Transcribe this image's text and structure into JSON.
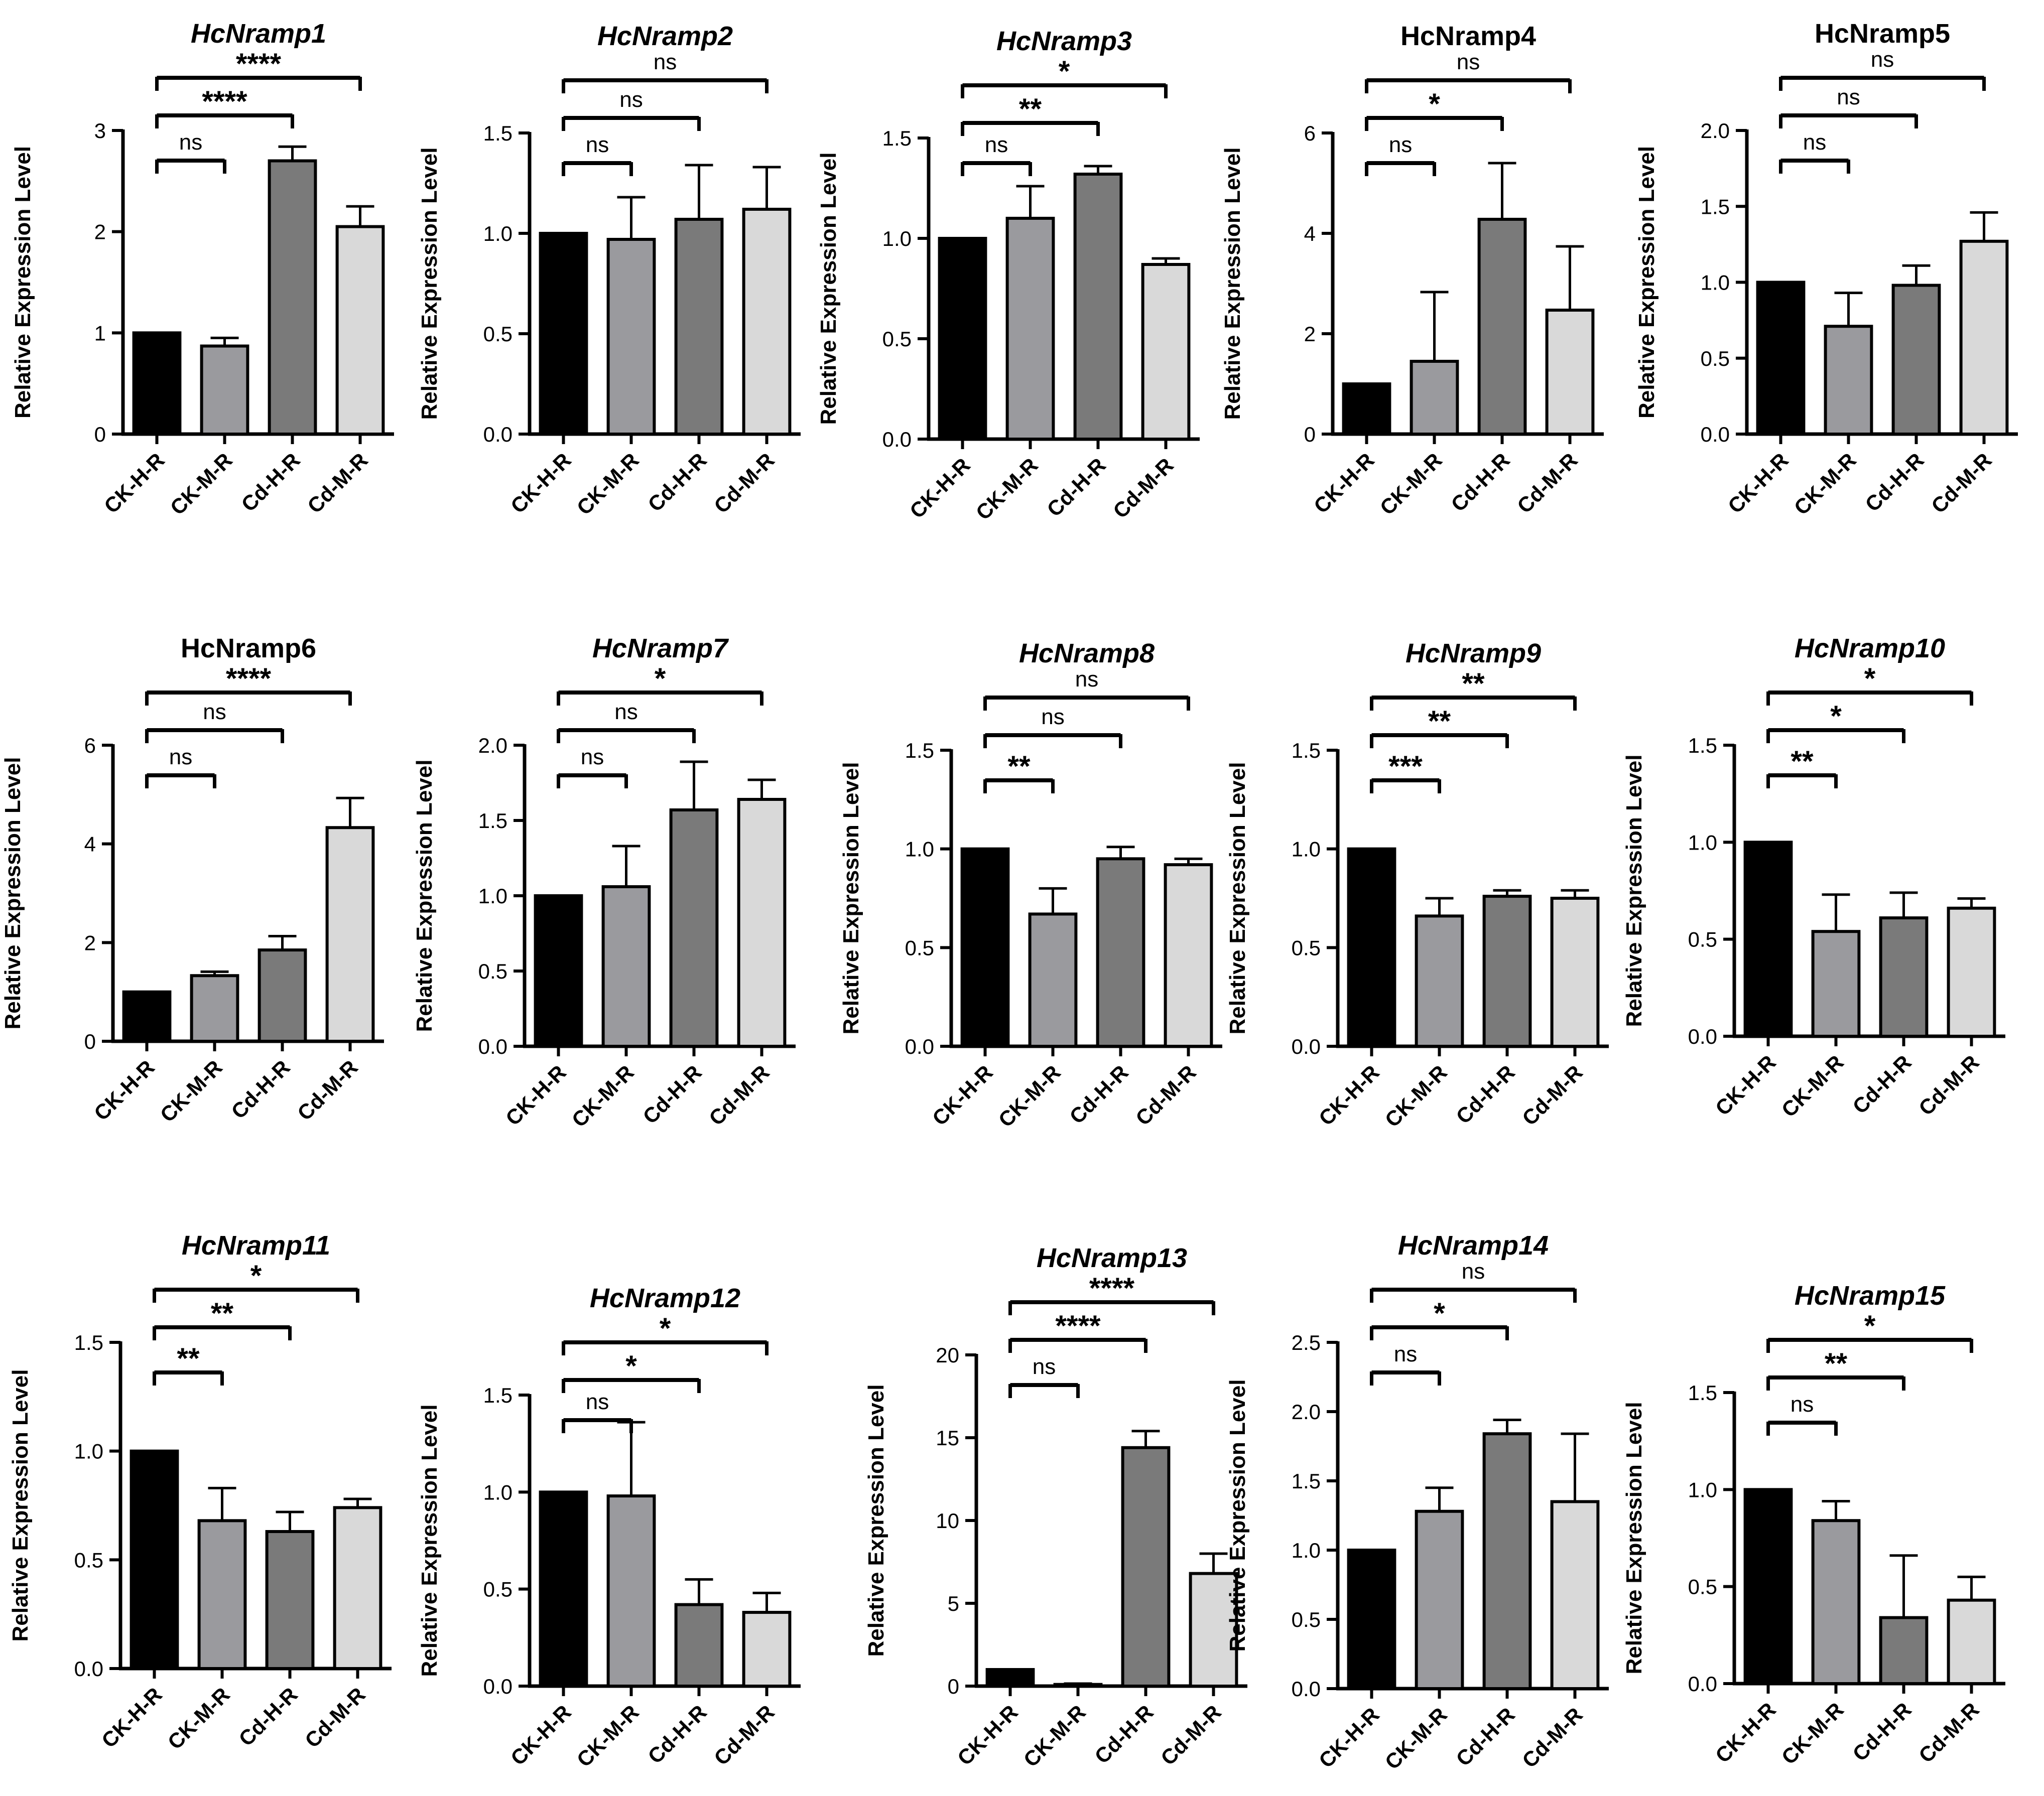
{
  "figure": {
    "ylabel": "Relative Expression Level",
    "categories": [
      "CK-H-R",
      "CK-M-R",
      "Cd-H-R",
      "Cd-M-R"
    ],
    "bar_colors": [
      "#000000",
      "#9a9a9e",
      "#7a7a7a",
      "#d9d9d9"
    ]
  },
  "chart_data": [
    {
      "type": "bar",
      "title": "HcNramp1",
      "italic": true,
      "categories": [
        "CK-H-R",
        "CK-M-R",
        "Cd-H-R",
        "Cd-M-R"
      ],
      "values": [
        1.0,
        0.87,
        2.7,
        2.05
      ],
      "errors": [
        0,
        0.08,
        0.14,
        0.2
      ],
      "ylim": [
        0,
        3
      ],
      "yticks": [
        "0",
        "1",
        "2",
        "3"
      ],
      "ylabel": "Relative Expression Level",
      "significance": [
        {
          "from": 0,
          "to": 1,
          "label": "ns"
        },
        {
          "from": 0,
          "to": 2,
          "label": "****"
        },
        {
          "from": 0,
          "to": 3,
          "label": "****"
        }
      ]
    },
    {
      "type": "bar",
      "title": "HcNramp2",
      "italic": true,
      "categories": [
        "CK-H-R",
        "CK-M-R",
        "Cd-H-R",
        "Cd-M-R"
      ],
      "values": [
        1.0,
        0.97,
        1.07,
        1.12
      ],
      "errors": [
        0,
        0.21,
        0.27,
        0.21
      ],
      "ylim": [
        0,
        1.5
      ],
      "yticks": [
        "0.0",
        "0.5",
        "1.0",
        "1.5"
      ],
      "ylabel": "Relative Expression Level",
      "significance": [
        {
          "from": 0,
          "to": 1,
          "label": "ns"
        },
        {
          "from": 0,
          "to": 2,
          "label": "ns"
        },
        {
          "from": 0,
          "to": 3,
          "label": "ns"
        }
      ]
    },
    {
      "type": "bar",
      "title": "HcNramp3",
      "italic": true,
      "categories": [
        "CK-H-R",
        "CK-M-R",
        "Cd-H-R",
        "Cd-M-R"
      ],
      "values": [
        1.0,
        1.1,
        1.32,
        0.87
      ],
      "errors": [
        0,
        0.16,
        0.04,
        0.03
      ],
      "ylim": [
        0,
        1.5
      ],
      "yticks": [
        "0.0",
        "0.5",
        "1.0",
        "1.5"
      ],
      "ylabel": "Relative Expression Level",
      "significance": [
        {
          "from": 0,
          "to": 1,
          "label": "ns"
        },
        {
          "from": 0,
          "to": 2,
          "label": "**"
        },
        {
          "from": 0,
          "to": 3,
          "label": "*"
        }
      ]
    },
    {
      "type": "bar",
      "title": "HcNramp4",
      "italic": false,
      "categories": [
        "CK-H-R",
        "CK-M-R",
        "Cd-H-R",
        "Cd-M-R"
      ],
      "values": [
        1.0,
        1.45,
        4.28,
        2.47
      ],
      "errors": [
        0,
        1.38,
        1.12,
        1.27
      ],
      "ylim": [
        0,
        6
      ],
      "yticks": [
        "0",
        "2",
        "4",
        "6"
      ],
      "ylabel": "Relative Expression Level",
      "significance": [
        {
          "from": 0,
          "to": 1,
          "label": "ns"
        },
        {
          "from": 0,
          "to": 2,
          "label": "*"
        },
        {
          "from": 0,
          "to": 3,
          "label": "ns"
        }
      ]
    },
    {
      "type": "bar",
      "title": "HcNramp5",
      "italic": false,
      "categories": [
        "CK-H-R",
        "CK-M-R",
        "Cd-H-R",
        "Cd-M-R"
      ],
      "values": [
        1.0,
        0.71,
        0.98,
        1.27
      ],
      "errors": [
        0,
        0.22,
        0.13,
        0.19
      ],
      "ylim": [
        0,
        2.0
      ],
      "yticks": [
        "0.0",
        "0.5",
        "1.0",
        "1.5",
        "2.0"
      ],
      "ylabel": "Relative Expression Level",
      "significance": [
        {
          "from": 0,
          "to": 1,
          "label": "ns"
        },
        {
          "from": 0,
          "to": 2,
          "label": "ns"
        },
        {
          "from": 0,
          "to": 3,
          "label": "ns"
        }
      ]
    },
    {
      "type": "bar",
      "title": "HcNramp6",
      "italic": false,
      "categories": [
        "CK-H-R",
        "CK-M-R",
        "Cd-H-R",
        "Cd-M-R"
      ],
      "values": [
        1.0,
        1.33,
        1.85,
        4.33
      ],
      "errors": [
        0,
        0.08,
        0.28,
        0.6
      ],
      "ylim": [
        0,
        6
      ],
      "yticks": [
        "0",
        "2",
        "4",
        "6"
      ],
      "ylabel": "Relative Expression Level",
      "significance": [
        {
          "from": 0,
          "to": 1,
          "label": "ns"
        },
        {
          "from": 0,
          "to": 2,
          "label": "ns"
        },
        {
          "from": 0,
          "to": 3,
          "label": "****"
        }
      ]
    },
    {
      "type": "bar",
      "title": "HcNramp7",
      "italic": true,
      "categories": [
        "CK-H-R",
        "CK-M-R",
        "Cd-H-R",
        "Cd-M-R"
      ],
      "values": [
        1.0,
        1.06,
        1.57,
        1.64
      ],
      "errors": [
        0,
        0.27,
        0.32,
        0.13
      ],
      "ylim": [
        0,
        2.0
      ],
      "yticks": [
        "0.0",
        "0.5",
        "1.0",
        "1.5",
        "2.0"
      ],
      "ylabel": "Relative Expression Level",
      "significance": [
        {
          "from": 0,
          "to": 1,
          "label": "ns"
        },
        {
          "from": 0,
          "to": 2,
          "label": "ns"
        },
        {
          "from": 0,
          "to": 3,
          "label": "*"
        }
      ]
    },
    {
      "type": "bar",
      "title": "HcNramp8",
      "italic": true,
      "categories": [
        "CK-H-R",
        "CK-M-R",
        "Cd-H-R",
        "Cd-M-R"
      ],
      "values": [
        1.0,
        0.67,
        0.95,
        0.92
      ],
      "errors": [
        0,
        0.13,
        0.06,
        0.03
      ],
      "ylim": [
        0,
        1.5
      ],
      "yticks": [
        "0.0",
        "0.5",
        "1.0",
        "1.5"
      ],
      "ylabel": "Relative Expression Level",
      "significance": [
        {
          "from": 0,
          "to": 1,
          "label": "**"
        },
        {
          "from": 0,
          "to": 2,
          "label": "ns"
        },
        {
          "from": 0,
          "to": 3,
          "label": "ns"
        }
      ]
    },
    {
      "type": "bar",
      "title": "HcNramp9",
      "italic": true,
      "categories": [
        "CK-H-R",
        "CK-M-R",
        "Cd-H-R",
        "Cd-M-R"
      ],
      "values": [
        1.0,
        0.66,
        0.76,
        0.75
      ],
      "errors": [
        0,
        0.09,
        0.03,
        0.04
      ],
      "ylim": [
        0,
        1.5
      ],
      "yticks": [
        "0.0",
        "0.5",
        "1.0",
        "1.5"
      ],
      "ylabel": "Relative Expression Level",
      "significance": [
        {
          "from": 0,
          "to": 1,
          "label": "***"
        },
        {
          "from": 0,
          "to": 2,
          "label": "**"
        },
        {
          "from": 0,
          "to": 3,
          "label": "**"
        }
      ]
    },
    {
      "type": "bar",
      "title": "HcNramp10",
      "italic": true,
      "categories": [
        "CK-H-R",
        "CK-M-R",
        "Cd-H-R",
        "Cd-M-R"
      ],
      "values": [
        1.0,
        0.54,
        0.61,
        0.66
      ],
      "errors": [
        0,
        0.19,
        0.13,
        0.05
      ],
      "ylim": [
        0,
        1.5
      ],
      "yticks": [
        "0.0",
        "0.5",
        "1.0",
        "1.5"
      ],
      "ylabel": "Relative Expression Level",
      "significance": [
        {
          "from": 0,
          "to": 1,
          "label": "**"
        },
        {
          "from": 0,
          "to": 2,
          "label": "*"
        },
        {
          "from": 0,
          "to": 3,
          "label": "*"
        }
      ]
    },
    {
      "type": "bar",
      "title": "HcNramp11",
      "italic": true,
      "categories": [
        "CK-H-R",
        "CK-M-R",
        "Cd-H-R",
        "Cd-M-R"
      ],
      "values": [
        1.0,
        0.68,
        0.63,
        0.74
      ],
      "errors": [
        0,
        0.15,
        0.09,
        0.04
      ],
      "ylim": [
        0,
        1.5
      ],
      "yticks": [
        "0.0",
        "0.5",
        "1.0",
        "1.5"
      ],
      "ylabel": "Relative Expression Level",
      "significance": [
        {
          "from": 0,
          "to": 1,
          "label": "**"
        },
        {
          "from": 0,
          "to": 2,
          "label": "**"
        },
        {
          "from": 0,
          "to": 3,
          "label": "*"
        }
      ]
    },
    {
      "type": "bar",
      "title": "HcNramp12",
      "italic": true,
      "categories": [
        "CK-H-R",
        "CK-M-R",
        "Cd-H-R",
        "Cd-M-R"
      ],
      "values": [
        1.0,
        0.98,
        0.42,
        0.38
      ],
      "errors": [
        0,
        0.38,
        0.13,
        0.1
      ],
      "ylim": [
        0,
        1.5
      ],
      "yticks": [
        "0.0",
        "0.5",
        "1.0",
        "1.5"
      ],
      "ylabel": "Relative Expression Level",
      "significance": [
        {
          "from": 0,
          "to": 1,
          "label": "ns"
        },
        {
          "from": 0,
          "to": 2,
          "label": "*"
        },
        {
          "from": 0,
          "to": 3,
          "label": "*"
        }
      ]
    },
    {
      "type": "bar",
      "title": "HcNramp13",
      "italic": true,
      "categories": [
        "CK-H-R",
        "CK-M-R",
        "Cd-H-R",
        "Cd-M-R"
      ],
      "values": [
        1.0,
        0.1,
        14.4,
        6.8
      ],
      "errors": [
        0,
        0.05,
        1.0,
        1.2
      ],
      "ylim": [
        0,
        20
      ],
      "yticks": [
        "0",
        "5",
        "10",
        "15",
        "20"
      ],
      "ylabel": "Relative Expression Level",
      "significance": [
        {
          "from": 0,
          "to": 1,
          "label": "ns"
        },
        {
          "from": 0,
          "to": 2,
          "label": "****"
        },
        {
          "from": 0,
          "to": 3,
          "label": "****"
        }
      ]
    },
    {
      "type": "bar",
      "title": "HcNramp14",
      "italic": true,
      "categories": [
        "CK-H-R",
        "CK-M-R",
        "Cd-H-R",
        "Cd-M-R"
      ],
      "values": [
        1.0,
        1.28,
        1.84,
        1.35
      ],
      "errors": [
        0,
        0.17,
        0.1,
        0.49
      ],
      "ylim": [
        0,
        2.5
      ],
      "yticks": [
        "0.0",
        "0.5",
        "1.0",
        "1.5",
        "2.0",
        "2.5"
      ],
      "ylabel": "Relative Expression Level",
      "significance": [
        {
          "from": 0,
          "to": 1,
          "label": "ns"
        },
        {
          "from": 0,
          "to": 2,
          "label": "*"
        },
        {
          "from": 0,
          "to": 3,
          "label": "ns"
        }
      ]
    },
    {
      "type": "bar",
      "title": "HcNramp15",
      "italic": true,
      "categories": [
        "CK-H-R",
        "CK-M-R",
        "Cd-H-R",
        "Cd-M-R"
      ],
      "values": [
        1.0,
        0.84,
        0.34,
        0.43
      ],
      "errors": [
        0,
        0.1,
        0.32,
        0.12
      ],
      "ylim": [
        0,
        1.5
      ],
      "yticks": [
        "0.0",
        "0.5",
        "1.0",
        "1.5"
      ],
      "ylabel": "Relative Expression Level",
      "significance": [
        {
          "from": 0,
          "to": 1,
          "label": "ns"
        },
        {
          "from": 0,
          "to": 2,
          "label": "**"
        },
        {
          "from": 0,
          "to": 3,
          "label": "*"
        }
      ]
    }
  ]
}
